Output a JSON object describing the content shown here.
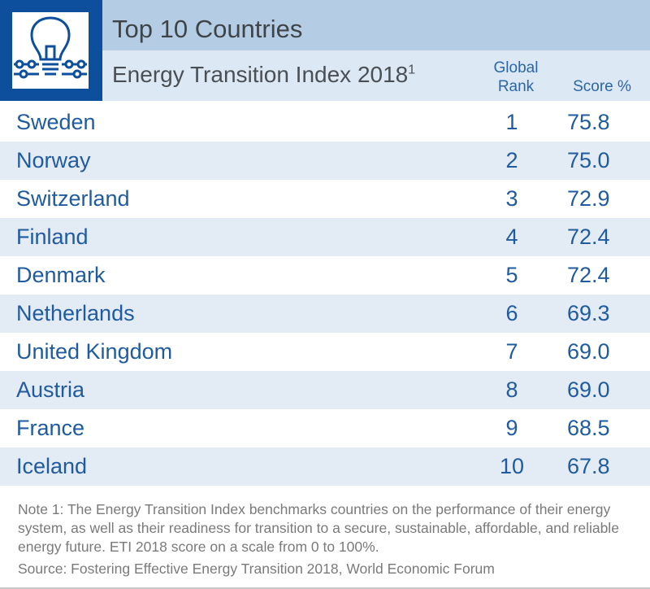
{
  "header": {
    "title": "Top 10 Countries",
    "subtitle": "Energy Transition Index 2018",
    "footnote_mark": "1",
    "col_rank_line1": "Global",
    "col_rank_line2": "Rank",
    "col_score": "Score %"
  },
  "colors": {
    "brand": "#0d4f9c",
    "header_band": "#b4cde5",
    "subheader_band": "#dce8f4",
    "row_alt": "#e3ebf5",
    "text_blue": "#1f5b9e"
  },
  "icon": "lightbulb-circuit-icon",
  "chart_data": {
    "type": "table",
    "title": "Top 10 Countries",
    "subtitle": "Energy Transition Index 2018",
    "columns": [
      "",
      "Global Rank",
      "Score %"
    ],
    "rows": [
      {
        "country": "Sweden",
        "rank": "1",
        "score": "75.8"
      },
      {
        "country": "Norway",
        "rank": "2",
        "score": "75.0"
      },
      {
        "country": "Switzerland",
        "rank": "3",
        "score": "72.9"
      },
      {
        "country": "Finland",
        "rank": "4",
        "score": "72.4"
      },
      {
        "country": "Denmark",
        "rank": "5",
        "score": "72.4"
      },
      {
        "country": "Netherlands",
        "rank": "6",
        "score": "69.3"
      },
      {
        "country": "United Kingdom",
        "rank": "7",
        "score": "69.0"
      },
      {
        "country": "Austria",
        "rank": "8",
        "score": "69.0"
      },
      {
        "country": "France",
        "rank": "9",
        "score": "68.5"
      },
      {
        "country": "Iceland",
        "rank": "10",
        "score": "67.8"
      }
    ]
  },
  "footer": {
    "note": "Note 1: The Energy Transition Index benchmarks countries on the performance of their energy system, as well as their readiness for transition to a secure, sustainable, affordable, and reliable energy future. ETI 2018 score on a scale from 0 to 100%.",
    "source": "Source: Fostering Effective Energy Transition 2018, World Economic Forum"
  }
}
